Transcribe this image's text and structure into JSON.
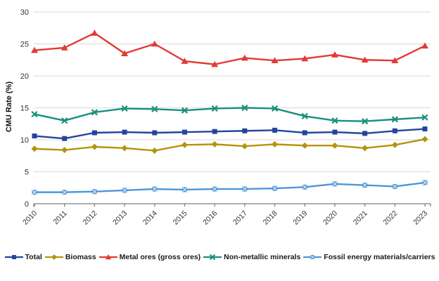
{
  "chart_data": {
    "type": "line",
    "title": "",
    "xlabel": "",
    "ylabel": "CMU Rate (%)",
    "x": [
      2010,
      2011,
      2012,
      2013,
      2014,
      2015,
      2016,
      2017,
      2018,
      2019,
      2020,
      2021,
      2022,
      2023
    ],
    "ylim": [
      0,
      30
    ],
    "ytick_step": 5,
    "grid": true,
    "legend_position": "bottom",
    "axis_color": "#7f7f7f",
    "gridline_color": "#d9d9d9",
    "tick_label_color": "#333333",
    "series": [
      {
        "name": "Total",
        "color": "#24449c",
        "marker": "square",
        "values": [
          10.6,
          10.2,
          11.1,
          11.2,
          11.1,
          11.2,
          11.3,
          11.4,
          11.5,
          11.1,
          11.2,
          11.0,
          11.4,
          11.7
        ]
      },
      {
        "name": "Biomass",
        "color": "#b3940e",
        "marker": "diamond",
        "values": [
          8.6,
          8.4,
          8.9,
          8.7,
          8.3,
          9.2,
          9.3,
          9.0,
          9.3,
          9.1,
          9.1,
          8.7,
          9.2,
          10.1
        ]
      },
      {
        "name": "Metal ores (gross ores)",
        "color": "#e23a34",
        "marker": "triangle",
        "values": [
          24.0,
          24.4,
          26.7,
          23.5,
          25.0,
          22.3,
          21.8,
          22.8,
          22.4,
          22.7,
          23.3,
          22.5,
          22.4,
          24.7
        ]
      },
      {
        "name": "Non-metallic minerals",
        "color": "#18907c",
        "marker": "x",
        "values": [
          14.0,
          13.0,
          14.3,
          14.9,
          14.8,
          14.6,
          14.9,
          15.0,
          14.9,
          13.7,
          13.0,
          12.9,
          13.2,
          13.5
        ]
      },
      {
        "name": "Fossil energy materials/carriers",
        "color": "#4d96d9",
        "marker": "x-square",
        "values": [
          1.8,
          1.8,
          1.9,
          2.1,
          2.3,
          2.2,
          2.3,
          2.3,
          2.4,
          2.6,
          3.1,
          2.9,
          2.7,
          3.3
        ]
      }
    ]
  }
}
